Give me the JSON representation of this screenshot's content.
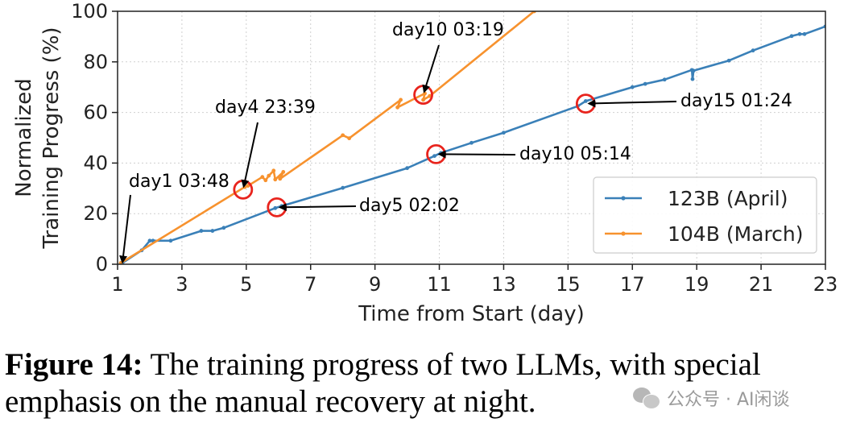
{
  "chart_data": {
    "type": "line",
    "xlabel": "Time from Start (day)",
    "ylabel_lines": [
      "Normalized",
      "Training Progress (%)"
    ],
    "xlim": [
      1,
      23
    ],
    "ylim": [
      0,
      100
    ],
    "xticks": [
      1,
      3,
      5,
      7,
      9,
      11,
      13,
      15,
      17,
      19,
      21,
      23
    ],
    "yticks": [
      0,
      20,
      40,
      60,
      80,
      100
    ],
    "grid": "dotted",
    "legend_position": "lower-right",
    "series": [
      {
        "name": "123B (April)",
        "color": "#3a80b8",
        "x": [
          1.15,
          1.75,
          2.0,
          2.1,
          2.65,
          3.6,
          3.95,
          4.3,
          5.9,
          6.1,
          8.0,
          10.0,
          10.85,
          11.05,
          12.0,
          13.0,
          15.3,
          15.55,
          17.0,
          17.4,
          18.0,
          18.85,
          18.87,
          18.9,
          20.0,
          20.75,
          21.95,
          22.2,
          22.35,
          23.0
        ],
        "y": [
          0.5,
          5.5,
          9.3,
          9.3,
          9.3,
          13.2,
          13.2,
          14.4,
          22.2,
          23.0,
          30.2,
          38.0,
          42.8,
          44.0,
          48.0,
          52.0,
          62.5,
          64.5,
          70.0,
          71.3,
          73.0,
          76.8,
          73.2,
          76.5,
          80.5,
          84.5,
          90.2,
          91.0,
          91.0,
          94.0
        ]
      },
      {
        "name": "104B (March)",
        "color": "#f7922e",
        "x": [
          1.1,
          4.95,
          5.05,
          5.5,
          5.6,
          5.7,
          5.85,
          5.9,
          6.15,
          6.05,
          8.0,
          8.2,
          9.8,
          9.7,
          10.55,
          10.5,
          10.7,
          13.95
        ],
        "y": [
          0.5,
          30.5,
          31.0,
          34.5,
          33.2,
          35.0,
          37.0,
          33.5,
          36.5,
          33.8,
          51.0,
          49.8,
          65.0,
          62.0,
          67.5,
          65.0,
          66.5,
          100.0
        ]
      }
    ],
    "annotations": [
      {
        "label": "day1 03:48",
        "x": 1.15,
        "y": 0.5,
        "circle": false
      },
      {
        "label": "day4 23:39",
        "x": 4.9,
        "y": 29.5,
        "circle": true
      },
      {
        "label": "day5 02:02",
        "x": 5.95,
        "y": 22.5,
        "circle": true
      },
      {
        "label": "day10 03:19",
        "x": 10.5,
        "y": 67.0,
        "circle": true
      },
      {
        "label": "day10 05:14",
        "x": 10.9,
        "y": 43.5,
        "circle": true
      },
      {
        "label": "day15 01:24",
        "x": 15.55,
        "y": 63.5,
        "circle": true
      }
    ]
  },
  "caption": {
    "label": "Figure 14:",
    "text": " The training progress of two LLMs, with special emphasis on the manual recovery at night."
  },
  "watermark": {
    "text": "公众号 · AI闲谈"
  }
}
